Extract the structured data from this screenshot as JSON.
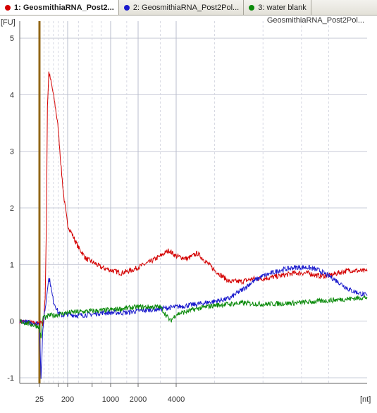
{
  "tabs": [
    {
      "label": "1: GeosmithiaRNA_Post2...",
      "color": "#d40000",
      "active": true
    },
    {
      "label": "2: GeosmithiaRNA_Post2Pol...",
      "color": "#1a1acc",
      "active": false
    },
    {
      "label": "3: water blank",
      "color": "#0a8a0a",
      "active": false
    }
  ],
  "chart_data": {
    "type": "line",
    "title": "GeosmithiaRNA_Post2Pol...",
    "ylabel": "[FU]",
    "xlabel": "[nt]",
    "ylim": [
      -1.1,
      5.3
    ],
    "yticks": [
      -1,
      0,
      1,
      2,
      3,
      4,
      5
    ],
    "xticks": [
      25,
      200,
      1000,
      2000,
      4000
    ],
    "grid": true,
    "series": [
      {
        "color": "#d40000",
        "x": [
          20,
          25,
          28,
          32,
          35,
          38,
          42,
          45,
          50,
          60,
          70,
          85,
          100,
          120,
          150,
          200,
          300,
          400,
          500,
          700,
          1000,
          1300,
          1700,
          2000,
          2500,
          3000,
          3500,
          4000,
          4500,
          5000,
          6000,
          7000,
          8000,
          9000,
          10000,
          12000,
          14000,
          16000,
          18000,
          20000,
          22000,
          25000,
          30000
        ],
        "y": [
          0.0,
          -0.05,
          0.0,
          -0.05,
          0.1,
          0.4,
          1.8,
          3.8,
          4.4,
          4.2,
          4.0,
          3.7,
          3.4,
          2.8,
          2.2,
          1.7,
          1.3,
          1.1,
          1.05,
          0.95,
          0.9,
          0.85,
          0.9,
          0.95,
          1.05,
          1.15,
          1.25,
          1.15,
          1.1,
          1.2,
          0.9,
          0.7,
          0.7,
          0.75,
          0.75,
          0.8,
          0.85,
          0.85,
          0.8,
          0.8,
          0.85,
          0.9,
          0.88
        ]
      },
      {
        "color": "#1a1acc",
        "x": [
          20,
          25,
          28,
          32,
          35,
          40,
          45,
          50,
          55,
          60,
          70,
          85,
          100,
          130,
          200,
          300,
          500,
          700,
          1000,
          1500,
          2000,
          3000,
          4000,
          5000,
          6000,
          7000,
          8000,
          9000,
          10000,
          12000,
          14000,
          16000,
          18000,
          20000,
          22000,
          25000,
          30000
        ],
        "y": [
          0.0,
          -0.05,
          -1.0,
          -0.2,
          0.1,
          0.3,
          0.6,
          0.75,
          0.7,
          0.55,
          0.35,
          0.25,
          0.15,
          0.1,
          0.12,
          0.1,
          0.12,
          0.15,
          0.15,
          0.15,
          0.18,
          0.22,
          0.25,
          0.3,
          0.35,
          0.4,
          0.55,
          0.7,
          0.8,
          0.9,
          0.95,
          0.95,
          0.9,
          0.8,
          0.7,
          0.55,
          0.45
        ]
      },
      {
        "color": "#0a8a0a",
        "x": [
          20,
          25,
          28,
          32,
          35,
          40,
          50,
          70,
          100,
          200,
          500,
          1000,
          2000,
          3000,
          3600,
          4000,
          5000,
          6000,
          8000,
          10000,
          14000,
          18000,
          22000,
          30000
        ],
        "y": [
          0.0,
          -0.1,
          -0.3,
          0.05,
          0.1,
          0.05,
          0.1,
          0.1,
          0.12,
          0.15,
          0.18,
          0.2,
          0.25,
          0.25,
          0.0,
          0.12,
          0.22,
          0.28,
          0.32,
          0.3,
          0.32,
          0.35,
          0.38,
          0.42
        ]
      }
    ]
  }
}
